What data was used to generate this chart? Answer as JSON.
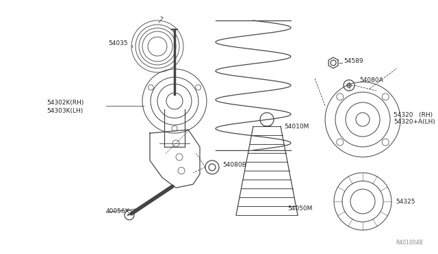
{
  "bg_color": "#ffffff",
  "line_color": "#444444",
  "text_color": "#222222",
  "ref_text": "R401004B",
  "figsize": [
    6.4,
    3.72
  ],
  "dpi": 100,
  "xlim": [
    0,
    640
  ],
  "ylim": [
    0,
    372
  ]
}
